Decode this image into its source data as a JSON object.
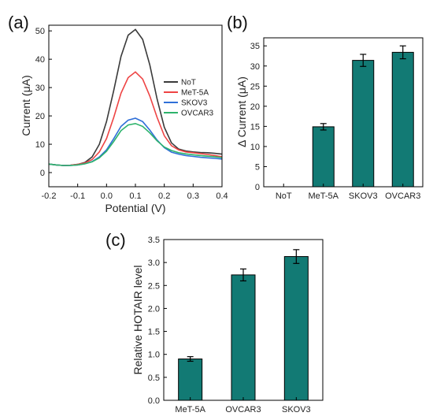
{
  "panel_labels": [
    "(a)",
    "(b)",
    "(c)"
  ],
  "colors": {
    "bar": "#127A74",
    "axis": "#000000",
    "error": "#000000"
  },
  "chart_data": [
    {
      "id": "a",
      "type": "line",
      "xlabel": "Potential (V)",
      "ylabel": "Current (μA)",
      "xlim": [
        -0.2,
        0.4
      ],
      "ylim": [
        -5,
        52
      ],
      "xticks": [
        "-0.2",
        "-0.1",
        "0.0",
        "0.1",
        "0.2",
        "0.3",
        "0.4"
      ],
      "yticks": [
        "0",
        "10",
        "20",
        "30",
        "40",
        "50"
      ],
      "legend": "top-right",
      "x": [
        -0.2,
        -0.175,
        -0.15,
        -0.125,
        -0.1,
        -0.075,
        -0.05,
        -0.025,
        0.0,
        0.025,
        0.05,
        0.075,
        0.1,
        0.125,
        0.15,
        0.175,
        0.2,
        0.225,
        0.25,
        0.275,
        0.3,
        0.325,
        0.35,
        0.375,
        0.4
      ],
      "series": [
        {
          "name": "NoT",
          "color": "#3a3a3a",
          "values": [
            3.0,
            2.7,
            2.5,
            2.6,
            2.9,
            3.6,
            5.5,
            10.0,
            18.0,
            29.0,
            41.0,
            48.5,
            50.5,
            47.0,
            38.0,
            26.0,
            16.0,
            10.5,
            8.3,
            7.6,
            7.3,
            7.1,
            7.0,
            6.8,
            6.5
          ]
        },
        {
          "name": "MeT-5A",
          "color": "#ee4444",
          "values": [
            3.0,
            2.7,
            2.5,
            2.6,
            2.9,
            3.4,
            4.6,
            7.3,
            12.0,
            19.5,
            28.0,
            33.5,
            35.5,
            33.0,
            27.0,
            19.5,
            13.0,
            9.5,
            8.0,
            7.3,
            7.0,
            6.7,
            6.4,
            6.0,
            5.6
          ]
        },
        {
          "name": "SKOV3",
          "color": "#2f6fd8",
          "values": [
            3.0,
            2.7,
            2.5,
            2.5,
            2.7,
            3.1,
            3.9,
            5.5,
            8.0,
            12.0,
            16.3,
            18.5,
            19.2,
            18.0,
            15.0,
            11.5,
            8.8,
            7.2,
            6.5,
            6.0,
            5.7,
            5.4,
            5.2,
            5.0,
            4.8
          ]
        },
        {
          "name": "OVCAR3",
          "color": "#2db36c",
          "values": [
            3.0,
            2.7,
            2.5,
            2.5,
            2.7,
            3.1,
            3.8,
            5.2,
            7.5,
            11.0,
            14.8,
            16.8,
            17.3,
            16.3,
            14.0,
            11.2,
            9.0,
            7.8,
            7.0,
            6.6,
            6.3,
            6.0,
            5.8,
            5.6,
            5.3
          ]
        }
      ]
    },
    {
      "id": "b",
      "type": "bar",
      "categories": [
        "NoT",
        "MeT-5A",
        "SKOV3",
        "OVCAR3"
      ],
      "values": [
        0,
        14.9,
        31.4,
        33.4
      ],
      "errors": [
        0,
        0.8,
        1.5,
        1.6
      ],
      "ylabel": "Δ Current (μA)",
      "ylim": [
        0,
        37
      ],
      "yticks": [
        "0",
        "5",
        "10",
        "15",
        "20",
        "25",
        "30",
        "35"
      ]
    },
    {
      "id": "c",
      "type": "bar",
      "categories": [
        "MeT-5A",
        "OVCAR3",
        "SKOV3"
      ],
      "values": [
        0.9,
        2.73,
        3.13
      ],
      "errors": [
        0.05,
        0.13,
        0.15
      ],
      "ylabel": "Relative HOTAIR level",
      "ylim": [
        0,
        3.5
      ],
      "yticks": [
        "0.0",
        "0.5",
        "1.0",
        "1.5",
        "2.0",
        "2.5",
        "3.0",
        "3.5"
      ]
    }
  ]
}
